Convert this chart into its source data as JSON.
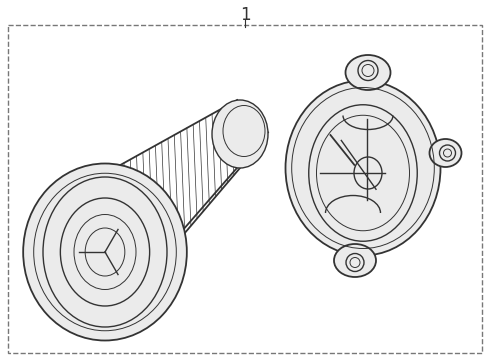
{
  "title": "1",
  "bg_color": "#ebebeb",
  "border_color": "#888888",
  "line_color": "#333333",
  "line_width": 1.2,
  "fig_bg": "#ffffff",
  "title_fontsize": 12,
  "lw_thin": 0.7,
  "lw_med": 1.0,
  "lw_thick": 1.3
}
